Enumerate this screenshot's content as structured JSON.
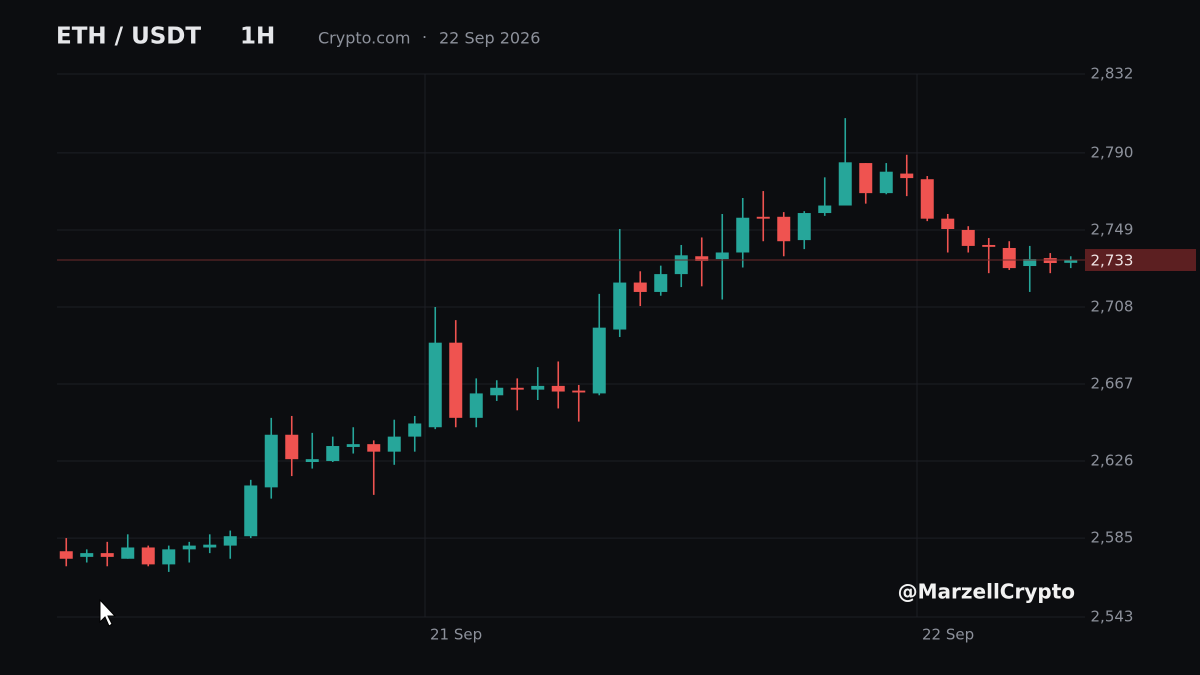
{
  "chart_data": {
    "type": "candlestick",
    "title": "ETH / USDT",
    "interval": "1H",
    "source": "Crypto.com",
    "separator": "·",
    "date": "22 Sep 2026",
    "watermark": "@MarzellCrypto",
    "up_color": "#26a69a",
    "down_color": "#ef5350",
    "open": [
      2578,
      2575,
      2577,
      2574,
      2580,
      2571,
      2579,
      2580,
      2581,
      2586,
      2612,
      2640,
      2625.5,
      2626,
      2633.5,
      2635,
      2631,
      2639,
      2644,
      2689,
      2649,
      2661,
      2665,
      2664,
      2666,
      2663.5,
      2662,
      2696,
      2721,
      2716,
      2725.5,
      2735,
      2733.5,
      2737,
      2756,
      2756,
      2743.6,
      2758,
      2762,
      2784.6,
      2768.6,
      2779,
      2776,
      2755,
      2749,
      2741,
      2739.4,
      2729.8,
      2734,
      2731.5
    ],
    "high": [
      2585,
      2579,
      2583,
      2587,
      2581,
      2581,
      2583,
      2587,
      2589,
      2616,
      2649,
      2650,
      2641,
      2639,
      2644,
      2637,
      2648,
      2650,
      2708,
      2701,
      2670,
      2669,
      2670,
      2676,
      2679,
      2666.5,
      2715,
      2749.5,
      2727,
      2730,
      2741,
      2745,
      2757.5,
      2766,
      2769.7,
      2758.5,
      2759,
      2777,
      2808.5,
      2784.6,
      2784.6,
      2789,
      2777.7,
      2757.5,
      2751,
      2744.7,
      2743,
      2740.5,
      2736.7,
      2735
    ],
    "low": [
      2570,
      2572,
      2570,
      2574,
      2570,
      2567,
      2572,
      2577,
      2574,
      2585,
      2606,
      2618,
      2622,
      2625.5,
      2630,
      2608,
      2624,
      2631,
      2643,
      2644,
      2644,
      2658,
      2653,
      2658.5,
      2654,
      2647,
      2661,
      2692,
      2708.5,
      2714,
      2718.6,
      2719,
      2712,
      2729,
      2743,
      2735,
      2738.8,
      2756.5,
      2762,
      2763,
      2768,
      2767,
      2753.7,
      2737,
      2737,
      2726,
      2727.7,
      2716,
      2726,
      2728.7
    ],
    "close": [
      2574,
      2577,
      2575,
      2580,
      2571,
      2579,
      2581,
      2581.5,
      2586,
      2613,
      2640,
      2627,
      2627,
      2634,
      2635,
      2631,
      2639,
      2646,
      2689,
      2649,
      2662,
      2665,
      2664,
      2666,
      2663,
      2662.5,
      2697,
      2721,
      2716,
      2725.5,
      2735.5,
      2732.5,
      2737,
      2755.5,
      2755,
      2743,
      2758,
      2762,
      2785,
      2768.6,
      2780,
      2776.6,
      2755,
      2749.5,
      2740.5,
      2740,
      2728.7,
      2733.5,
      2731.4,
      2733
    ],
    "xlim": [
      -0.5,
      49.5
    ],
    "xticks": [
      {
        "value": 17.5,
        "label": "21 Sep"
      },
      {
        "value": 41.5,
        "label": "22 Sep"
      }
    ],
    "ylim": [
      2543,
      2832
    ],
    "yticks": [
      {
        "value": 2543,
        "label": "2,543"
      },
      {
        "value": 2585,
        "label": "2,585"
      },
      {
        "value": 2626,
        "label": "2,626"
      },
      {
        "value": 2667,
        "label": "2,667"
      },
      {
        "value": 2708,
        "label": "2,708"
      },
      {
        "value": 2749,
        "label": "2,749"
      },
      {
        "value": 2790,
        "label": "2,790"
      },
      {
        "value": 2832,
        "label": "2,832"
      }
    ],
    "last_price": {
      "value": 2733,
      "label": "2,733"
    },
    "grid": true
  }
}
